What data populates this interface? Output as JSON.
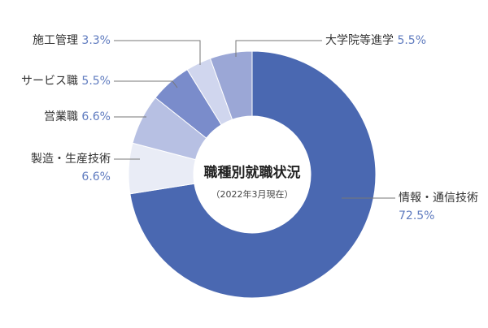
{
  "chart_data": {
    "type": "pie",
    "title": "職種別就職状況",
    "subtitle": "（2022年3月現在）",
    "categories": [
      "情報・通信技術",
      "製造・生産技術",
      "営業職",
      "サービス職",
      "施工管理",
      "大学院等進学"
    ],
    "values": [
      72.5,
      6.6,
      6.6,
      5.5,
      3.3,
      5.5
    ],
    "value_labels": [
      "72.5%",
      "6.6%",
      "6.6%",
      "5.5%",
      "3.3%",
      "5.5%"
    ],
    "label_lines": [
      [
        "情報・通信技術",
        "72.5%"
      ],
      [
        "製造・生産技術",
        "6.6%"
      ],
      [
        "営業職",
        "6.6%"
      ],
      [
        "サービス職",
        "5.5%"
      ],
      [
        "施工管理",
        "3.3%"
      ],
      [
        "大学院等進学",
        "5.5%"
      ]
    ],
    "colors": [
      "#4a68b1",
      "#e9ecf6",
      "#b7c0e3",
      "#7a8ccb",
      "#d0d6ee",
      "#9ba7d6"
    ],
    "value_color": "#5f7bbf",
    "style": "donut"
  }
}
